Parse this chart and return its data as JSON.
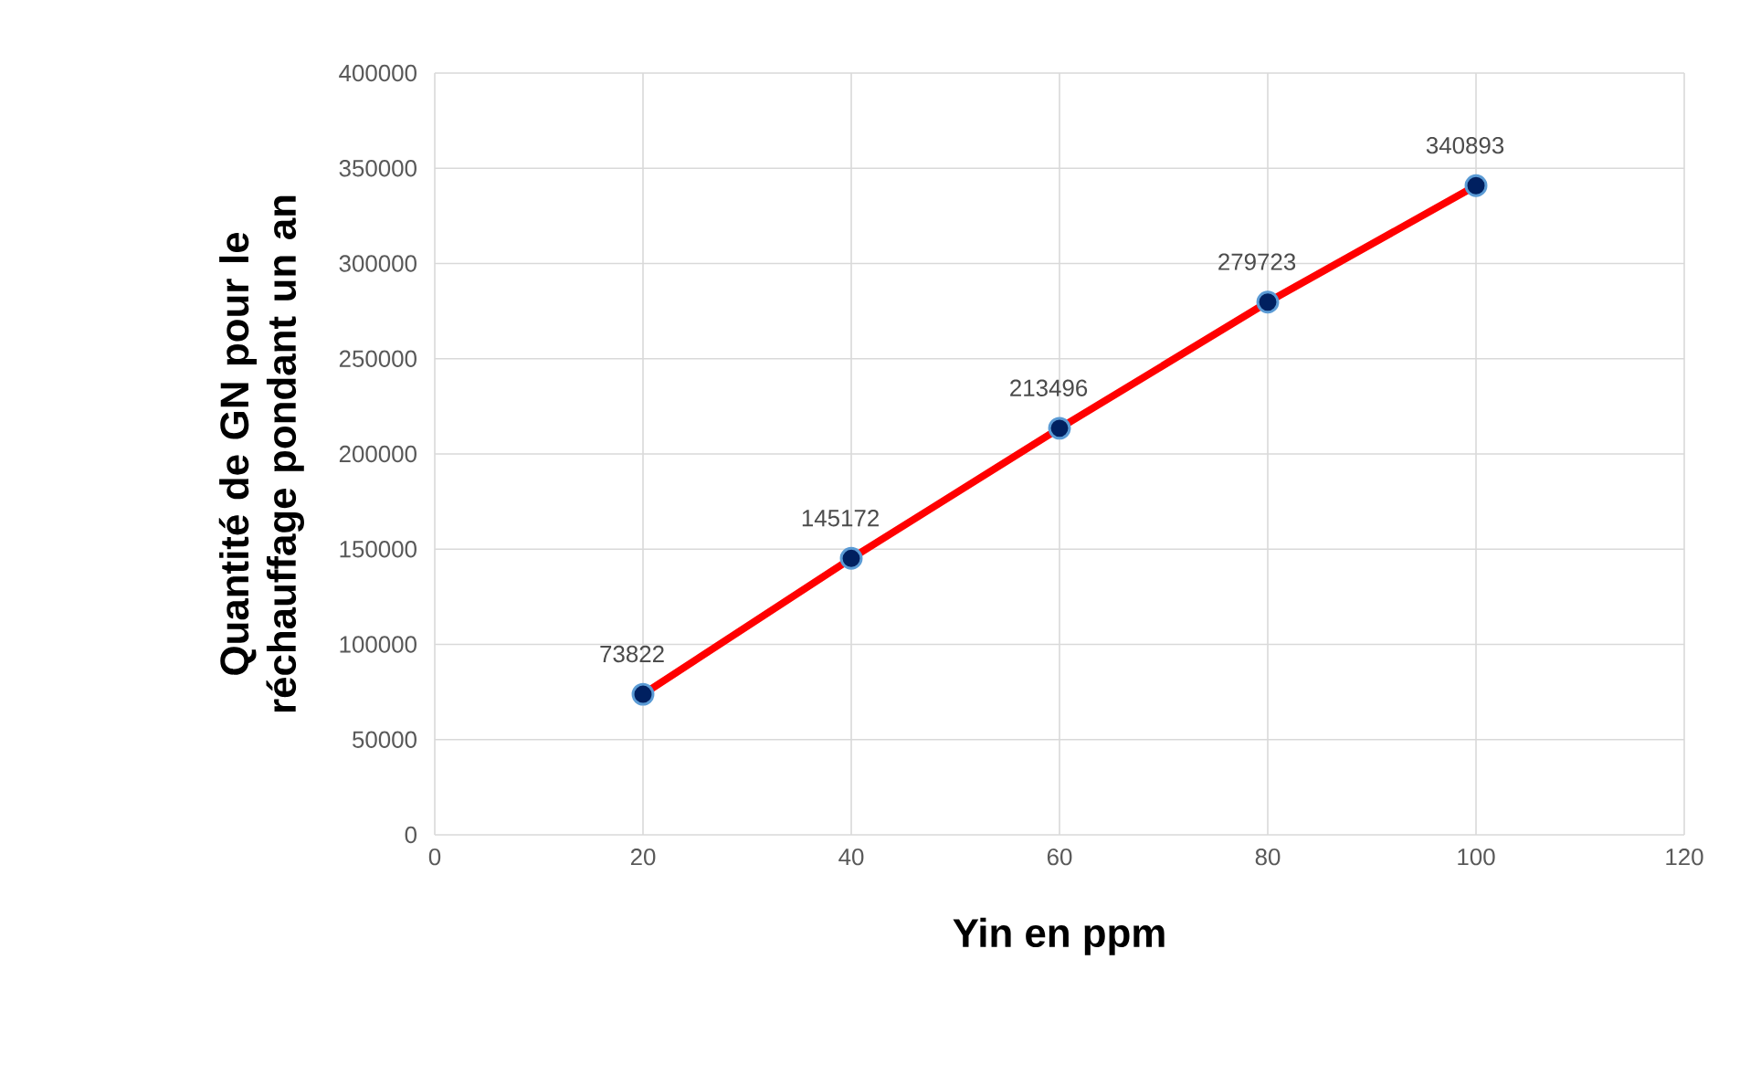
{
  "chart_data": {
    "type": "line",
    "xlabel": "Yin en ppm",
    "ylabel": "Quantité de GN pour le réchauffage pondant  un an",
    "x": [
      20,
      40,
      60,
      80,
      100
    ],
    "series": [
      {
        "color": "#ff0000",
        "values": [
          73822,
          145172,
          213496,
          279723,
          340893
        ]
      }
    ],
    "xlim": [
      0,
      120
    ],
    "xticks": [
      0,
      20,
      40,
      60,
      80,
      100,
      120
    ],
    "ylim": [
      0,
      400000
    ],
    "yticks": [
      0,
      50000,
      100000,
      150000,
      200000,
      250000,
      300000,
      350000,
      400000
    ],
    "grid": true,
    "marker": "circle",
    "line_style": "solid",
    "data_labels": true
  }
}
